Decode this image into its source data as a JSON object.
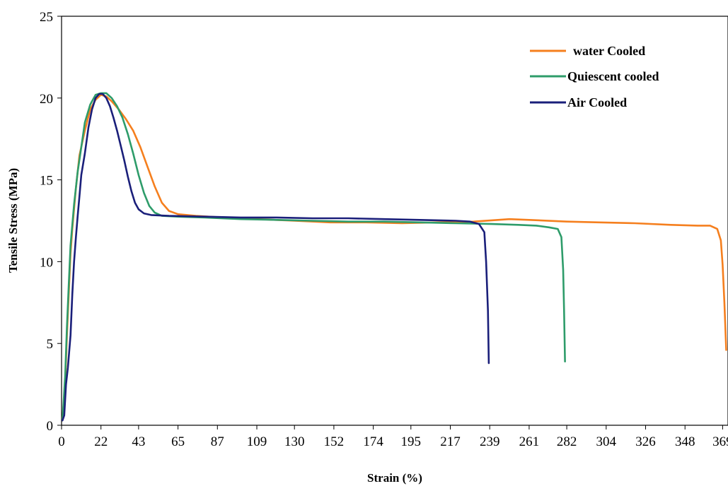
{
  "chart_data": {
    "type": "line",
    "title": "",
    "xlabel": "Strain (%)",
    "ylabel": "Tensile Stress (MPa)",
    "xlim": [
      0,
      372
    ],
    "ylim": [
      0,
      25
    ],
    "x_ticks": [
      0,
      22,
      43,
      65,
      87,
      109,
      130,
      152,
      174,
      195,
      217,
      239,
      261,
      282,
      304,
      326,
      348,
      369
    ],
    "y_ticks": [
      0,
      5,
      10,
      15,
      20,
      25
    ],
    "grid": false,
    "legend_position": "top-right",
    "series": [
      {
        "name": "water Cooled",
        "color": "#F57F1E",
        "points": [
          [
            0.5,
            0.3
          ],
          [
            2,
            2.5
          ],
          [
            3,
            5.5
          ],
          [
            5,
            10.5
          ],
          [
            6,
            12
          ],
          [
            8,
            14.5
          ],
          [
            10,
            16.5
          ],
          [
            13,
            18
          ],
          [
            16,
            19.3
          ],
          [
            19,
            19.9
          ],
          [
            22,
            20.2
          ],
          [
            25,
            20.1
          ],
          [
            28,
            19.8
          ],
          [
            32,
            19.3
          ],
          [
            36,
            18.7
          ],
          [
            40,
            18
          ],
          [
            44,
            17
          ],
          [
            48,
            15.8
          ],
          [
            52,
            14.6
          ],
          [
            56,
            13.6
          ],
          [
            60,
            13.1
          ],
          [
            65,
            12.9
          ],
          [
            75,
            12.8
          ],
          [
            90,
            12.7
          ],
          [
            110,
            12.6
          ],
          [
            130,
            12.5
          ],
          [
            150,
            12.4
          ],
          [
            170,
            12.4
          ],
          [
            190,
            12.35
          ],
          [
            210,
            12.4
          ],
          [
            230,
            12.45
          ],
          [
            250,
            12.6
          ],
          [
            261,
            12.55
          ],
          [
            282,
            12.45
          ],
          [
            300,
            12.4
          ],
          [
            320,
            12.35
          ],
          [
            340,
            12.25
          ],
          [
            355,
            12.2
          ],
          [
            362,
            12.2
          ],
          [
            366,
            12.0
          ],
          [
            368,
            11.3
          ],
          [
            369,
            9.8
          ],
          [
            370,
            7.5
          ],
          [
            371,
            4.6
          ]
        ]
      },
      {
        "name": "Quiescent cooled",
        "color": "#2E9C6A",
        "points": [
          [
            0.5,
            0.3
          ],
          [
            2,
            3
          ],
          [
            3,
            6
          ],
          [
            4,
            8.5
          ],
          [
            5,
            11
          ],
          [
            7,
            13.5
          ],
          [
            9,
            15.5
          ],
          [
            11,
            17
          ],
          [
            13,
            18.5
          ],
          [
            16,
            19.6
          ],
          [
            19,
            20.2
          ],
          [
            22,
            20.3
          ],
          [
            25,
            20.3
          ],
          [
            28,
            20
          ],
          [
            31,
            19.5
          ],
          [
            34,
            18.8
          ],
          [
            37,
            17.8
          ],
          [
            40,
            16.6
          ],
          [
            43,
            15.3
          ],
          [
            46,
            14.2
          ],
          [
            49,
            13.4
          ],
          [
            52,
            13
          ],
          [
            56,
            12.8
          ],
          [
            65,
            12.75
          ],
          [
            80,
            12.7
          ],
          [
            100,
            12.6
          ],
          [
            120,
            12.55
          ],
          [
            140,
            12.5
          ],
          [
            160,
            12.45
          ],
          [
            180,
            12.45
          ],
          [
            200,
            12.4
          ],
          [
            220,
            12.35
          ],
          [
            240,
            12.3
          ],
          [
            255,
            12.25
          ],
          [
            265,
            12.2
          ],
          [
            272,
            12.1
          ],
          [
            277,
            12.0
          ],
          [
            279,
            11.5
          ],
          [
            280,
            9.5
          ],
          [
            280.5,
            7
          ],
          [
            281,
            3.9
          ]
        ]
      },
      {
        "name": "Air Cooled",
        "color": "#1A1F7A",
        "points": [
          [
            0.5,
            0.3
          ],
          [
            1.5,
            0.6
          ],
          [
            2.5,
            2.5
          ],
          [
            3.5,
            3.5
          ],
          [
            5,
            5.5
          ],
          [
            6,
            8
          ],
          [
            7,
            10
          ],
          [
            8,
            11.5
          ],
          [
            9,
            12.8
          ],
          [
            10,
            14
          ],
          [
            11,
            15.3
          ],
          [
            13,
            16.6
          ],
          [
            15,
            18.2
          ],
          [
            17,
            19.3
          ],
          [
            19,
            20
          ],
          [
            21,
            20.25
          ],
          [
            23,
            20.25
          ],
          [
            25,
            20
          ],
          [
            27,
            19.5
          ],
          [
            29,
            18.8
          ],
          [
            31,
            18
          ],
          [
            33,
            17.1
          ],
          [
            35,
            16.2
          ],
          [
            37,
            15.2
          ],
          [
            39,
            14.3
          ],
          [
            41,
            13.6
          ],
          [
            43,
            13.2
          ],
          [
            46,
            12.95
          ],
          [
            50,
            12.85
          ],
          [
            60,
            12.8
          ],
          [
            80,
            12.75
          ],
          [
            100,
            12.7
          ],
          [
            120,
            12.7
          ],
          [
            140,
            12.65
          ],
          [
            160,
            12.65
          ],
          [
            180,
            12.6
          ],
          [
            200,
            12.55
          ],
          [
            220,
            12.5
          ],
          [
            228,
            12.45
          ],
          [
            233,
            12.3
          ],
          [
            236,
            11.8
          ],
          [
            237,
            10
          ],
          [
            238,
            7
          ],
          [
            238.5,
            3.8
          ]
        ]
      }
    ]
  }
}
